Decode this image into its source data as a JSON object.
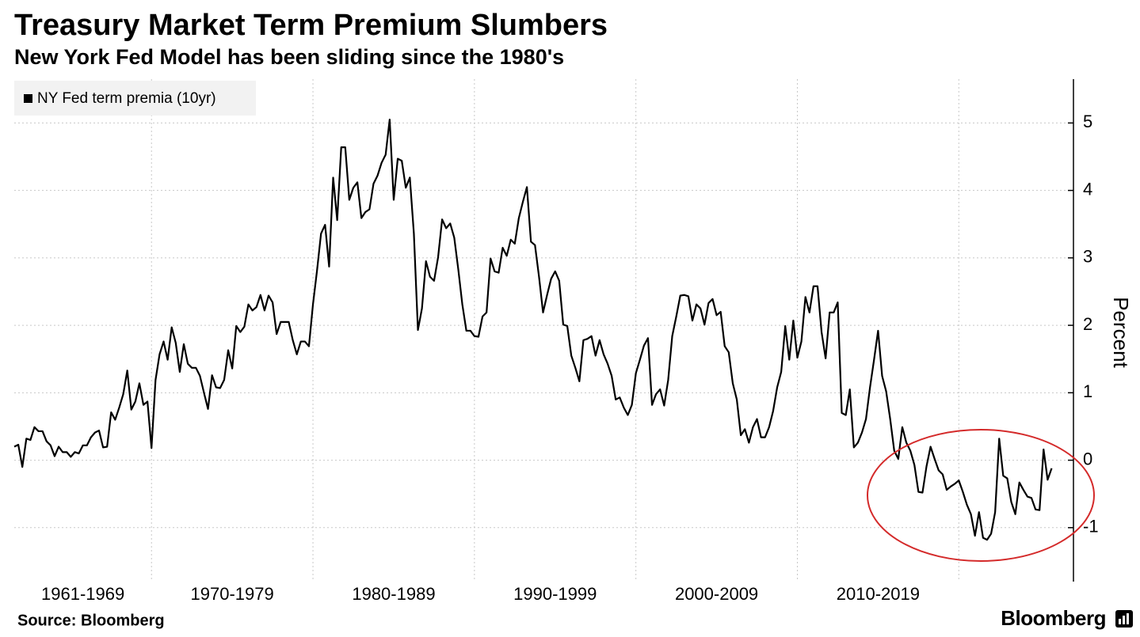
{
  "chart_data": {
    "type": "line",
    "title": "Treasury Market Term Premium Slumbers",
    "subtitle": "New York Fed Model has been sliding since the 1980's",
    "y_label": "Percent",
    "source": "Source: Bloomberg",
    "brand": "Bloomberg",
    "legend": "top-left",
    "grid": true,
    "ylim": [
      -1.8,
      5.65
    ],
    "yticks": [
      -1,
      0,
      1,
      2,
      3,
      4,
      5
    ],
    "xlim": [
      1961.5,
      2027.1
    ],
    "periods": [
      {
        "label": "1961-1969",
        "start": 1961,
        "end": 1970
      },
      {
        "label": "1970-1979",
        "start": 1970,
        "end": 1980
      },
      {
        "label": "1980-1989",
        "start": 1980,
        "end": 1990
      },
      {
        "label": "1990-1999",
        "start": 1990,
        "end": 2000
      },
      {
        "label": "2000-2009",
        "start": 2000,
        "end": 2010
      },
      {
        "label": "2010-2019",
        "start": 2010,
        "end": 2020
      }
    ],
    "x": [
      1961.5,
      1961.75,
      1962,
      1962.25,
      1962.5,
      1962.75,
      1963,
      1963.25,
      1963.5,
      1963.75,
      1964,
      1964.25,
      1964.5,
      1964.75,
      1965,
      1965.25,
      1965.5,
      1965.75,
      1966,
      1966.25,
      1966.5,
      1966.75,
      1967,
      1967.25,
      1967.5,
      1967.75,
      1968,
      1968.25,
      1968.5,
      1968.75,
      1969,
      1969.25,
      1969.5,
      1969.75,
      1970,
      1970.25,
      1970.5,
      1970.75,
      1971,
      1971.25,
      1971.5,
      1971.75,
      1972,
      1972.25,
      1972.5,
      1972.75,
      1973,
      1973.25,
      1973.5,
      1973.75,
      1974,
      1974.25,
      1974.5,
      1974.75,
      1975,
      1975.25,
      1975.5,
      1975.75,
      1976,
      1976.25,
      1976.5,
      1976.75,
      1977,
      1977.25,
      1977.5,
      1977.75,
      1978,
      1978.25,
      1978.5,
      1978.75,
      1979,
      1979.25,
      1979.5,
      1979.75,
      1980,
      1980.25,
      1980.5,
      1980.75,
      1981,
      1981.25,
      1981.5,
      1981.75,
      1982,
      1982.25,
      1982.5,
      1982.75,
      1983,
      1983.25,
      1983.5,
      1983.75,
      1984,
      1984.25,
      1984.5,
      1984.75,
      1985,
      1985.25,
      1985.5,
      1985.75,
      1986,
      1986.25,
      1986.5,
      1986.75,
      1987,
      1987.25,
      1987.5,
      1987.75,
      1988,
      1988.25,
      1988.5,
      1988.75,
      1989,
      1989.25,
      1989.5,
      1989.75,
      1990,
      1990.25,
      1990.5,
      1990.75,
      1991,
      1991.25,
      1991.5,
      1991.75,
      1992,
      1992.25,
      1992.5,
      1992.75,
      1993,
      1993.25,
      1993.5,
      1993.75,
      1994,
      1994.25,
      1994.5,
      1994.75,
      1995,
      1995.25,
      1995.5,
      1995.75,
      1996,
      1996.25,
      1996.5,
      1996.75,
      1997,
      1997.25,
      1997.5,
      1997.75,
      1998,
      1998.25,
      1998.5,
      1998.75,
      1999,
      1999.25,
      1999.5,
      1999.75,
      2000,
      2000.25,
      2000.5,
      2000.75,
      2001,
      2001.25,
      2001.5,
      2001.75,
      2002,
      2002.25,
      2002.5,
      2002.75,
      2003,
      2003.25,
      2003.5,
      2003.75,
      2004,
      2004.25,
      2004.5,
      2004.75,
      2005,
      2005.25,
      2005.5,
      2005.75,
      2006,
      2006.25,
      2006.5,
      2006.75,
      2007,
      2007.25,
      2007.5,
      2007.75,
      2008,
      2008.25,
      2008.5,
      2008.75,
      2009,
      2009.25,
      2009.5,
      2009.75,
      2010,
      2010.25,
      2010.5,
      2010.75,
      2011,
      2011.25,
      2011.5,
      2011.75,
      2012,
      2012.25,
      2012.5,
      2012.75,
      2013,
      2013.25,
      2013.5,
      2013.75,
      2014,
      2014.25,
      2014.5,
      2014.75,
      2015,
      2015.25,
      2015.5,
      2015.75,
      2016,
      2016.25,
      2016.5,
      2016.75,
      2017,
      2017.25,
      2017.5,
      2017.75,
      2018,
      2018.25,
      2018.5,
      2018.75,
      2019,
      2019.25,
      2019.5,
      2019.75,
      2020,
      2020.25,
      2020.5,
      2020.75,
      2021,
      2021.25,
      2021.5,
      2021.75,
      2022,
      2022.25,
      2022.5,
      2022.75,
      2023,
      2023.25,
      2023.5,
      2023.75,
      2024,
      2024.25,
      2024.5,
      2024.75,
      2025,
      2025.25,
      2025.5,
      2025.75
    ],
    "series": [
      {
        "name": "NY Fed term premia (10yr)",
        "color": "#000000",
        "values": [
          0.2,
          0.23,
          -0.1,
          0.32,
          0.3,
          0.49,
          0.43,
          0.43,
          0.28,
          0.22,
          0.06,
          0.2,
          0.12,
          0.12,
          0.05,
          0.12,
          0.1,
          0.22,
          0.22,
          0.34,
          0.41,
          0.44,
          0.19,
          0.2,
          0.71,
          0.6,
          0.78,
          0.98,
          1.33,
          0.75,
          0.87,
          1.14,
          0.82,
          0.87,
          0.18,
          1.19,
          1.57,
          1.76,
          1.49,
          1.97,
          1.74,
          1.31,
          1.72,
          1.43,
          1.37,
          1.37,
          1.25,
          1.0,
          0.76,
          1.26,
          1.08,
          1.07,
          1.19,
          1.63,
          1.36,
          1.99,
          1.9,
          1.98,
          2.31,
          2.22,
          2.27,
          2.45,
          2.22,
          2.44,
          2.34,
          1.87,
          2.05,
          2.05,
          2.05,
          1.78,
          1.57,
          1.76,
          1.76,
          1.69,
          2.31,
          2.81,
          3.36,
          3.49,
          2.87,
          4.19,
          3.56,
          4.64,
          4.64,
          3.86,
          4.04,
          4.12,
          3.59,
          3.68,
          3.72,
          4.1,
          4.22,
          4.41,
          4.53,
          5.05,
          3.86,
          4.47,
          4.44,
          4.04,
          4.19,
          3.36,
          1.93,
          2.25,
          2.95,
          2.72,
          2.66,
          3.01,
          3.57,
          3.44,
          3.51,
          3.3,
          2.83,
          2.31,
          1.92,
          1.92,
          1.84,
          1.83,
          2.13,
          2.19,
          2.99,
          2.8,
          2.78,
          3.15,
          3.03,
          3.27,
          3.21,
          3.59,
          3.83,
          4.05,
          3.24,
          3.19,
          2.72,
          2.19,
          2.45,
          2.69,
          2.8,
          2.66,
          2.01,
          1.99,
          1.55,
          1.37,
          1.17,
          1.78,
          1.8,
          1.84,
          1.55,
          1.78,
          1.57,
          1.43,
          1.25,
          0.9,
          0.93,
          0.78,
          0.67,
          0.82,
          1.29,
          1.49,
          1.7,
          1.81,
          0.82,
          0.98,
          1.05,
          0.81,
          1.19,
          1.84,
          2.13,
          2.44,
          2.45,
          2.43,
          2.07,
          2.31,
          2.25,
          2.01,
          2.33,
          2.39,
          2.15,
          2.2,
          1.69,
          1.6,
          1.14,
          0.9,
          0.37,
          0.46,
          0.26,
          0.49,
          0.61,
          0.34,
          0.34,
          0.49,
          0.73,
          1.08,
          1.31,
          1.99,
          1.49,
          2.07,
          1.52,
          1.76,
          2.42,
          2.19,
          2.58,
          2.58,
          1.9,
          1.51,
          2.19,
          2.19,
          2.34,
          0.7,
          0.67,
          1.05,
          0.19,
          0.26,
          0.41,
          0.61,
          1.08,
          1.49,
          1.92,
          1.25,
          1.02,
          0.61,
          0.14,
          0.02,
          0.49,
          0.26,
          0.14,
          -0.07,
          -0.47,
          -0.48,
          -0.09,
          0.2,
          0.02,
          -0.15,
          -0.21,
          -0.44,
          -0.39,
          -0.35,
          -0.3,
          -0.47,
          -0.66,
          -0.8,
          -1.12,
          -0.77,
          -1.15,
          -1.18,
          -1.09,
          -0.77,
          0.32,
          -0.23,
          -0.27,
          -0.62,
          -0.8,
          -0.33,
          -0.44,
          -0.54,
          -0.56,
          -0.73,
          -0.74,
          0.16,
          -0.29,
          -0.12
        ]
      }
    ]
  }
}
